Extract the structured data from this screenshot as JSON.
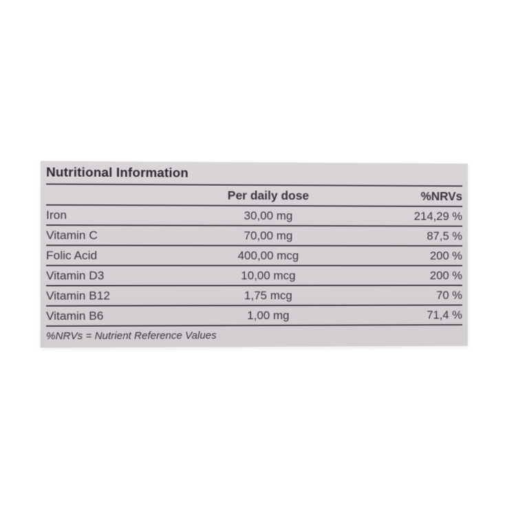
{
  "page": {
    "background_color": "#ffffff"
  },
  "label": {
    "title": "Nutritional Information",
    "colors": {
      "label_bg_top": "#d9d5d8",
      "label_bg_bottom": "#d2ced1",
      "rule": "#4b424b",
      "text": "#39343e",
      "title_text": "#2c2831"
    },
    "columns": {
      "nutrient": "",
      "dose": "Per daily dose",
      "nrv": "%NRVs"
    },
    "rows": [
      {
        "nutrient": "Iron",
        "dose": "30,00 mg",
        "nrv": "214,29 %"
      },
      {
        "nutrient": "Vitamin C",
        "dose": "70,00 mg",
        "nrv": "87,5 %"
      },
      {
        "nutrient": "Folic Acid",
        "dose": "400,00 mcg",
        "nrv": "200 %"
      },
      {
        "nutrient": "Vitamin D3",
        "dose": "10,00 mcg",
        "nrv": "200 %"
      },
      {
        "nutrient": "Vitamin B12",
        "dose": "1,75 mcg",
        "nrv": "70 %"
      },
      {
        "nutrient": "Vitamin B6",
        "dose": "1,00 mg",
        "nrv": "71,4 %"
      }
    ],
    "footnote": "%NRVs = Nutrient Reference Values"
  }
}
